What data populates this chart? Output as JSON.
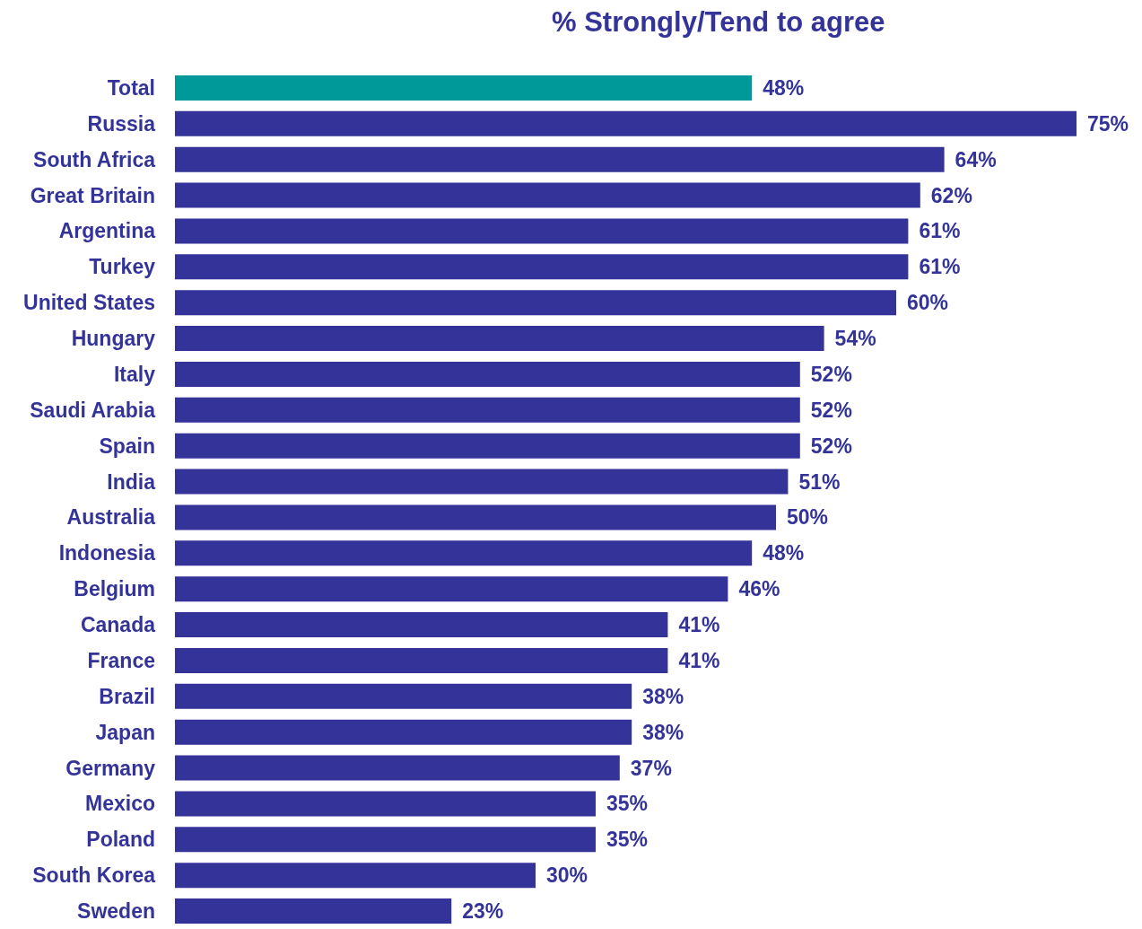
{
  "chart_data": {
    "type": "bar",
    "orientation": "horizontal",
    "title": "% Strongly/Tend to agree",
    "categories": [
      "Total",
      "Russia",
      "South Africa",
      "Great Britain",
      "Argentina",
      "Turkey",
      "United States",
      "Hungary",
      "Italy",
      "Saudi Arabia",
      "Spain",
      "India",
      "Australia",
      "Indonesia",
      "Belgium",
      "Canada",
      "France",
      "Brazil",
      "Japan",
      "Germany",
      "Mexico",
      "Poland",
      "South Korea",
      "Sweden"
    ],
    "values": [
      48,
      75,
      64,
      62,
      61,
      61,
      60,
      54,
      52,
      52,
      52,
      51,
      50,
      48,
      46,
      41,
      41,
      38,
      38,
      37,
      35,
      35,
      30,
      23
    ],
    "value_labels": [
      "48%",
      "75%",
      "64%",
      "62%",
      "61%",
      "61%",
      "60%",
      "54%",
      "52%",
      "52%",
      "52%",
      "51%",
      "50%",
      "48%",
      "46%",
      "41%",
      "41%",
      "38%",
      "38%",
      "37%",
      "35%",
      "35%",
      "30%",
      "23%"
    ],
    "colors": [
      "#009999",
      "#333399",
      "#333399",
      "#333399",
      "#333399",
      "#333399",
      "#333399",
      "#333399",
      "#333399",
      "#333399",
      "#333399",
      "#333399",
      "#333399",
      "#333399",
      "#333399",
      "#333399",
      "#333399",
      "#333399",
      "#333399",
      "#333399",
      "#333399",
      "#333399",
      "#333399",
      "#333399"
    ]
  }
}
